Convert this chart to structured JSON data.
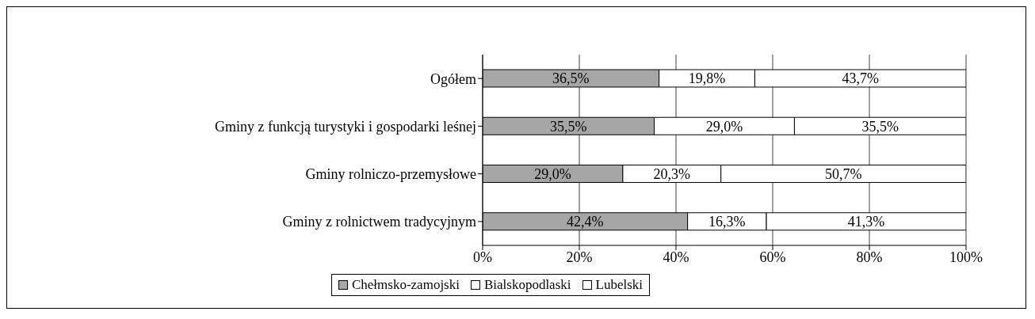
{
  "chart_data": {
    "type": "bar",
    "orientation": "horizontal",
    "stacked": true,
    "categories": [
      "Ogółem",
      "Gminy z funkcją turystyki i gospodarki leśnej",
      "Gminy rolniczo-przemysłowe",
      "Gminy z rolnictwem tradycyjnym"
    ],
    "series": [
      {
        "name": "Chełmsko-zamojski",
        "color": "#a6a6a6",
        "values": [
          36.5,
          35.5,
          29.0,
          42.4
        ],
        "value_labels": [
          "36,5%",
          "35,5%",
          "29,0%",
          "42,4%"
        ]
      },
      {
        "name": "Bialskopodlaski",
        "color": "#ffffff",
        "values": [
          19.8,
          29.0,
          20.3,
          16.3
        ],
        "value_labels": [
          "19,8%",
          "29,0%",
          "20,3%",
          "16,3%"
        ]
      },
      {
        "name": "Lubelski",
        "color": "#ffffff",
        "values": [
          43.7,
          35.5,
          50.7,
          41.3
        ],
        "value_labels": [
          "43,7%",
          "35,5%",
          "50,7%",
          "41,3%"
        ]
      }
    ],
    "xlim": [
      0,
      100
    ],
    "xticks": [
      {
        "value": 0,
        "label": "0%"
      },
      {
        "value": 20,
        "label": "20%"
      },
      {
        "value": 40,
        "label": "40%"
      },
      {
        "value": 60,
        "label": "60%"
      },
      {
        "value": 80,
        "label": "80%"
      },
      {
        "value": 100,
        "label": "100%"
      }
    ],
    "grid": "x",
    "legend": "bottom"
  }
}
